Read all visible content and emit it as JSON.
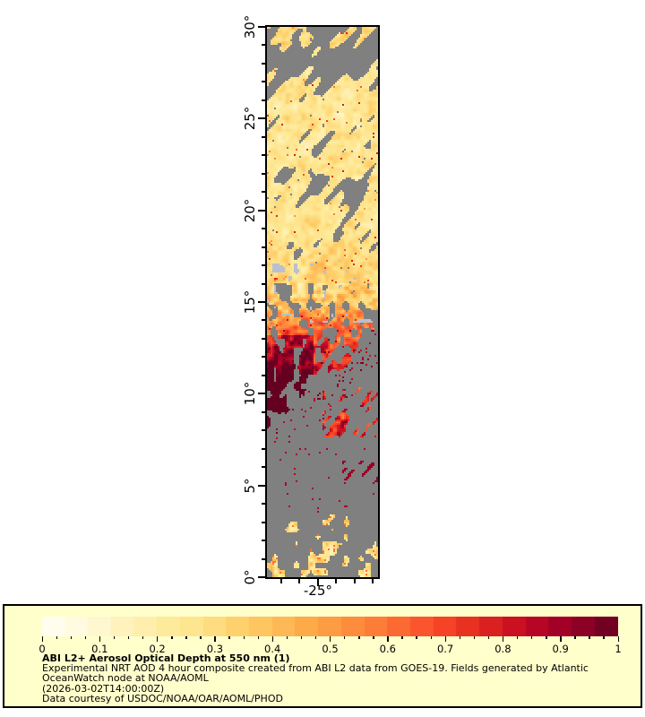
{
  "figure": {
    "background": "#ffffff",
    "frame_color": "#000000"
  },
  "chart_data": {
    "type": "heatmap",
    "title": "ABI L2+ Aerosol Optical Depth at 550 nm (1)",
    "projection": "lat-lon map strip over Atlantic Ocean",
    "y_axis": {
      "range": [
        0,
        30
      ],
      "unit": "degrees latitude",
      "major_ticks": [
        {
          "value": 0,
          "label": "0°"
        },
        {
          "value": 5,
          "label": "5°"
        },
        {
          "value": 10,
          "label": "10°"
        },
        {
          "value": 15,
          "label": "15°"
        },
        {
          "value": 20,
          "label": "20°"
        },
        {
          "value": 25,
          "label": "25°"
        },
        {
          "value": 30,
          "label": "30°"
        }
      ],
      "minor_tick_step": 1
    },
    "x_axis": {
      "range": [
        -27.78,
        -21.72
      ],
      "unit": "degrees longitude",
      "labeled_tick": {
        "value": -25,
        "label": "-25°"
      },
      "minor_ticks": [
        -27,
        -26,
        -25,
        -24,
        -23,
        -22
      ]
    },
    "colorbar": {
      "range": [
        0,
        1
      ],
      "tick_labels": [
        "0",
        "0.1",
        "0.2",
        "0.3",
        "0.4",
        "0.5",
        "0.6",
        "0.7",
        "0.8",
        "0.9",
        "1"
      ],
      "minor_tick_step": 0.025,
      "n_blocks": 25,
      "palette_stops": [
        [
          0.0,
          "#fffff4"
        ],
        [
          0.04,
          "#fffce8"
        ],
        [
          0.1,
          "#fff7d0"
        ],
        [
          0.16,
          "#fff0b4"
        ],
        [
          0.22,
          "#feea9b"
        ],
        [
          0.28,
          "#fee289"
        ],
        [
          0.34,
          "#fed16d"
        ],
        [
          0.4,
          "#febf5b"
        ],
        [
          0.46,
          "#fdaa48"
        ],
        [
          0.52,
          "#fd953f"
        ],
        [
          0.58,
          "#fd7d38"
        ],
        [
          0.64,
          "#fc5f30"
        ],
        [
          0.7,
          "#f64226"
        ],
        [
          0.76,
          "#e22820"
        ],
        [
          0.82,
          "#cb1022"
        ],
        [
          0.88,
          "#ad0026"
        ],
        [
          0.94,
          "#8c0026"
        ],
        [
          1.0,
          "#650021"
        ]
      ]
    },
    "special_colors": {
      "no_data_gray": "#808080",
      "glint_patch_blue": "#b9c0cf"
    },
    "aod_bands_by_latitude": [
      {
        "lat": [
          29.2,
          30.0
        ],
        "mean_aod": 0.28,
        "gray_fraction": 0.25,
        "note": "speckled tan-orange, gray along top edge"
      },
      {
        "lat": [
          27.0,
          29.2
        ],
        "mean_aod": 0.22,
        "gray_fraction": 0.75,
        "note": "large gray cloud mass"
      },
      {
        "lat": [
          21.5,
          27.0
        ],
        "mean_aod": 0.24,
        "gray_fraction": 0.1,
        "note": "pale yellow-tan field, diagonal gray streaks"
      },
      {
        "lat": [
          19.0,
          21.5
        ],
        "mean_aod": 0.27,
        "gray_fraction": 0.3,
        "note": "gray streak cluster near 20.5N"
      },
      {
        "lat": [
          16.0,
          19.0
        ],
        "mean_aod": 0.31,
        "gray_fraction": 0.1,
        "note": "yellow-orange"
      },
      {
        "lat": [
          14.0,
          16.0
        ],
        "mean_aod": 0.4,
        "gray_fraction": 0.15,
        "note": "orange; pale blue glint patches"
      },
      {
        "lat": [
          12.5,
          14.0
        ],
        "mean_aod": 0.62,
        "gray_fraction": 0.32,
        "note": "red-orange dust plume edge"
      },
      {
        "lat": [
          10.5,
          12.5
        ],
        "mean_aod": 0.8,
        "gray_fraction": 0.45,
        "note": "deep red/maroon left, gray right"
      },
      {
        "lat": [
          8.0,
          10.5
        ],
        "mean_aod": 0.85,
        "gray_fraction": 0.7,
        "note": "maroon specks left, diagonal orange streaks right"
      },
      {
        "lat": [
          3.0,
          8.0
        ],
        "mean_aod": 0.88,
        "gray_fraction": 0.95,
        "note": "mostly gray, maroon dashes ~5.5N right"
      },
      {
        "lat": [
          0.0,
          3.0
        ],
        "mean_aod": 0.35,
        "gray_fraction": 0.8,
        "note": "gray with yellow-orange blob clusters center"
      }
    ],
    "render_seed": 7
  },
  "legend": {
    "background": "#ffffcc",
    "title": "ABI L2+ Aerosol Optical Depth at 550 nm (1)",
    "lines": [
      "Experimental NRT AOD 4 hour composite created from ABI L2 data from GOES-19. Fields generated by Atlantic",
      "OceanWatch node at NOAA/AOML",
      "(2026-03-02T14:00:00Z)",
      "Data courtesy of USDOC/NOAA/OAR/AOML/PHOD"
    ]
  }
}
